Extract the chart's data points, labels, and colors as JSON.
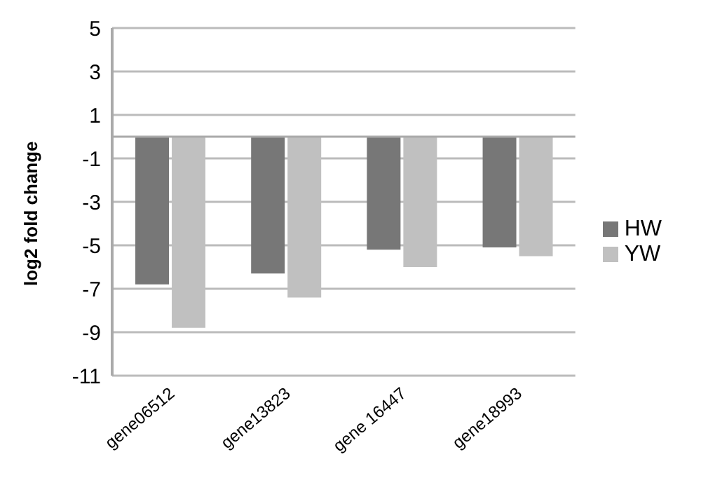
{
  "chart_data": {
    "type": "bar",
    "ylabel": "log2 fold change",
    "categories": [
      "gene06512",
      "gene13823",
      "gene 16447",
      "gene18993"
    ],
    "series": [
      {
        "name": "HW",
        "color": "#777777",
        "values": [
          -6.8,
          -6.3,
          -5.2,
          -5.1
        ]
      },
      {
        "name": "YW",
        "color": "#c0c0c0",
        "values": [
          -8.8,
          -7.4,
          -6.0,
          -5.5
        ]
      }
    ],
    "ylim": [
      -11,
      5
    ],
    "yticks": [
      -11,
      -9,
      -7,
      -5,
      -3,
      -1,
      1,
      3,
      5
    ],
    "grid": "y",
    "legend": "right"
  }
}
